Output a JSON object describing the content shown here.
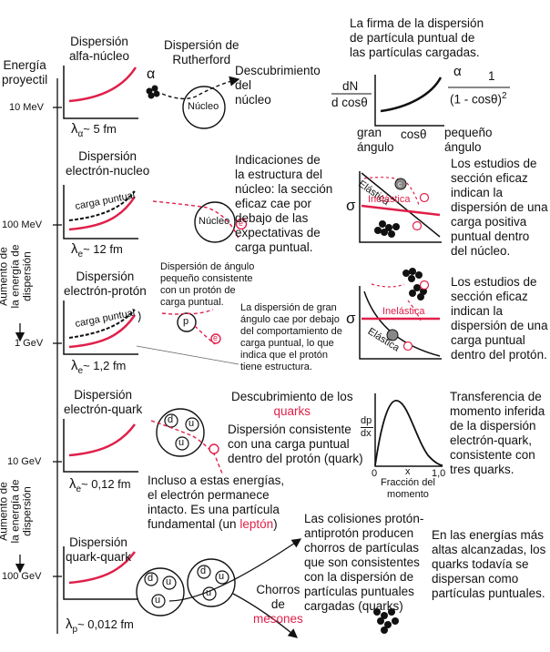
{
  "colors": {
    "accent_red": "#e0204a",
    "ink": "#111111"
  },
  "axis": {
    "title_1": "Energía",
    "title_2": "proyectil",
    "ticks": [
      "10 MeV",
      "100 MeV",
      "1 GeV",
      "10 GeV",
      "100 GeV"
    ],
    "side_label_1": [
      "Aumento de",
      "la energía de",
      "dispersión"
    ],
    "side_label_2": [
      "Aumento de",
      "la energía de",
      "dispersión"
    ]
  },
  "alpha": {
    "title_1": "Dispersión",
    "title_2": "alfa-núcleo",
    "lambda": "λ",
    "lambda_sub": "α",
    "lambda_val": "~ 5 fm",
    "alpha_symbol": "α",
    "rutherford_1": "Dispersión de",
    "rutherford_2": "Rutherford",
    "nucleus": "Núcleo",
    "discovery": [
      "Descubrimiento",
      "del",
      "núcleo"
    ]
  },
  "signature": {
    "text": [
      "La firma de la dispersión",
      "de partícula puntual de",
      "las partículas cargadas."
    ],
    "dN": "dN",
    "dcos": "d cosθ",
    "prop": "α",
    "one": "1",
    "denom": "(1 - cosθ)",
    "sq": "2",
    "gran": [
      "gran",
      "ángulo"
    ],
    "cos": "cosθ",
    "pequeno": [
      "pequeño",
      "ángulo"
    ]
  },
  "electron_nucleus": {
    "title_1": "Dispersión",
    "title_2": "electrón-nucleo",
    "point_charge": "carga puntual",
    "lambda": "λ",
    "lambda_sub": "e",
    "lambda_val": "~ 12 fm",
    "nucleus": "Núcleo",
    "electron": "e",
    "desc": [
      "Indicaciones de",
      "la estructura del",
      "núcleo: la sección",
      "eficaz cae por",
      "debajo de las",
      "expectativas de",
      "carga puntual."
    ],
    "sigma": "σ",
    "elastic": "Elástica",
    "inelastic": "Inelástica",
    "c": "c",
    "right": [
      "Los estudios de",
      "sección eficaz",
      "indican la",
      "dispersión de una",
      "carga positiva",
      "puntual dentro",
      "del núcleo."
    ]
  },
  "electron_proton": {
    "title_1": "Dispersión",
    "title_2": "electrón-protón",
    "point_charge": "carga puntual",
    "lambda": "λ",
    "lambda_sub": "e",
    "lambda_val": "~ 1,2 fm",
    "proton": "p",
    "electron": "e",
    "small_angle": [
      "Dispersión de ángulo",
      "pequeño consistente",
      "con un protón de",
      "carga puntual."
    ],
    "large_angle": [
      "La dispersión de gran",
      "ángulo cae por debajo",
      "del comportamiento de",
      "carga puntual, lo que",
      "indica que el protón",
      "tiene estructura."
    ],
    "sigma": "σ",
    "elastic": "Elástica",
    "inelastic": "Inelástica",
    "right": [
      "Los estudios de",
      "sección eficaz",
      "indican la",
      "dispersión de una",
      "carga puntual",
      "dentro del protón."
    ]
  },
  "electron_quark": {
    "title_1": "Dispersión",
    "title_2": "electrón-quark",
    "lambda": "λ",
    "lambda_sub": "e",
    "lambda_val": "~ 0,12 fm",
    "quarks": [
      "d",
      "u",
      "u"
    ],
    "disc_1": "Descubrimiento de los",
    "disc_2": "quarks",
    "consistent": [
      "Dispersión consistente",
      "con una carga puntual",
      "dentro del protón (quark)"
    ],
    "intact_1": "Incluso a estas energías,",
    "intact_2": "el electrón permanece",
    "intact_3": "intacto. Es una partícula",
    "intact_4a": "fundamental (un ",
    "intact_4b": "leptón",
    "intact_4c": ")",
    "dp": "dp",
    "dx": "dx",
    "x": "x",
    "zero": "0",
    "one": "1,0",
    "frac": [
      "Fracción del",
      "momento"
    ],
    "right": [
      "Transferencia de",
      "momento inferida",
      "de la dispersión",
      "electrón-quark,",
      "consistente con",
      "tres quarks."
    ]
  },
  "quark_quark": {
    "title_1": "Dispersión",
    "title_2": "quark-quark",
    "lambda": "λ",
    "lambda_sub": "p",
    "lambda_val": "~ 0,012 fm",
    "p1": [
      "d",
      "u",
      "u"
    ],
    "p2": [
      "d",
      "u",
      "u"
    ],
    "jets_1": "Chorros",
    "jets_2": "de",
    "jets_3": "mesones",
    "collisions": [
      "Las colisiones protón-",
      "antiprotón producen",
      "chorros de partículas",
      "que son consistentes",
      "con la dispersión de",
      "partículas puntuales",
      "cargadas (quarks)"
    ],
    "right": [
      "En las energías más",
      "altas alcanzadas, los",
      "quarks todavía se",
      "dispersan como",
      "partículas puntuales."
    ]
  }
}
